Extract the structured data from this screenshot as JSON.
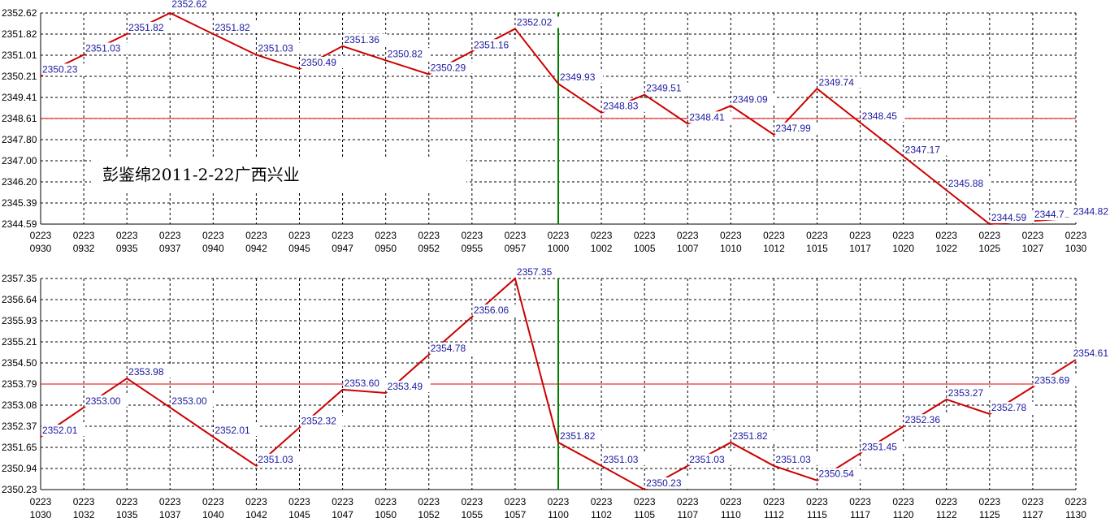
{
  "annotation": "彭鉴绵2011-2-22广西兴业",
  "colors": {
    "line": "#cc0000",
    "reference_line": "#e00000",
    "marker_line": "#008000",
    "grid": "#000000",
    "label": "#1a1aa0"
  },
  "chart_data": [
    {
      "type": "line",
      "ylim": [
        2344.59,
        2352.62
      ],
      "y_ticks": [
        "2352.62",
        "2351.82",
        "2351.01",
        "2350.21",
        "2349.41",
        "2348.61",
        "2347.80",
        "2347.00",
        "2346.20",
        "2345.39",
        "2344.59"
      ],
      "x_ticks": [
        {
          "top": "0223",
          "bottom": "0930"
        },
        {
          "top": "0223",
          "bottom": "0932"
        },
        {
          "top": "0223",
          "bottom": "0935"
        },
        {
          "top": "0223",
          "bottom": "0937"
        },
        {
          "top": "0223",
          "bottom": "0940"
        },
        {
          "top": "0223",
          "bottom": "0942"
        },
        {
          "top": "0223",
          "bottom": "0945"
        },
        {
          "top": "0223",
          "bottom": "0947"
        },
        {
          "top": "0223",
          "bottom": "0950"
        },
        {
          "top": "0223",
          "bottom": "0952"
        },
        {
          "top": "0223",
          "bottom": "0955"
        },
        {
          "top": "0223",
          "bottom": "0957"
        },
        {
          "top": "0223",
          "bottom": "1000"
        },
        {
          "top": "0223",
          "bottom": "1002"
        },
        {
          "top": "0223",
          "bottom": "1005"
        },
        {
          "top": "0223",
          "bottom": "1007"
        },
        {
          "top": "0223",
          "bottom": "1010"
        },
        {
          "top": "0223",
          "bottom": "1012"
        },
        {
          "top": "0223",
          "bottom": "1015"
        },
        {
          "top": "0223",
          "bottom": "1017"
        },
        {
          "top": "0223",
          "bottom": "1020"
        },
        {
          "top": "0223",
          "bottom": "1022"
        },
        {
          "top": "0223",
          "bottom": "1025"
        },
        {
          "top": "0223",
          "bottom": "1027"
        },
        {
          "top": "0223",
          "bottom": "1030"
        }
      ],
      "points": [
        {
          "x": "0930",
          "y": 2350.23,
          "label": "2350.23"
        },
        {
          "x": "0932",
          "y": 2351.03,
          "label": "2351.03"
        },
        {
          "x": "0935",
          "y": 2351.82,
          "label": "2351.82"
        },
        {
          "x": "0937",
          "y": 2352.62,
          "label": "2352.62"
        },
        {
          "x": "0940",
          "y": 2351.82,
          "label": "2351.82"
        },
        {
          "x": "0942",
          "y": 2351.03,
          "label": "2351.03"
        },
        {
          "x": "0945",
          "y": 2350.49,
          "label": "2350.49"
        },
        {
          "x": "0947",
          "y": 2351.36,
          "label": "2351.36"
        },
        {
          "x": "0950",
          "y": 2350.82,
          "label": "2350.82"
        },
        {
          "x": "0952",
          "y": 2350.29,
          "label": "2350.29"
        },
        {
          "x": "0955",
          "y": 2351.16,
          "label": "2351.16"
        },
        {
          "x": "0957",
          "y": 2352.02,
          "label": "2352.02"
        },
        {
          "x": "1000",
          "y": 2349.93,
          "label": "2349.93"
        },
        {
          "x": "1002",
          "y": 2348.83,
          "label": "2348.83"
        },
        {
          "x": "1005",
          "y": 2349.51,
          "label": "2349.51"
        },
        {
          "x": "1007",
          "y": 2348.41,
          "label": "2348.41"
        },
        {
          "x": "1010",
          "y": 2349.09,
          "label": "2349.09"
        },
        {
          "x": "1012",
          "y": 2347.99,
          "label": "2347.99"
        },
        {
          "x": "1015",
          "y": 2349.74,
          "label": "2349.74"
        },
        {
          "x": "1017",
          "y": 2348.45,
          "label": "2348.45"
        },
        {
          "x": "1020",
          "y": 2347.17,
          "label": "2347.17"
        },
        {
          "x": "1022",
          "y": 2345.88,
          "label": "2345.88"
        },
        {
          "x": "1025",
          "y": 2344.59,
          "label": "2344.59"
        },
        {
          "x": "1027",
          "y": 2344.71,
          "label": "2344.71"
        },
        {
          "x": "1030",
          "y": 2344.82,
          "label": "2344.82"
        }
      ],
      "reference_y": 2348.61,
      "marker_x": "1000",
      "grid": true
    },
    {
      "type": "line",
      "ylim": [
        2350.23,
        2357.35
      ],
      "y_ticks": [
        "2357.35",
        "2356.64",
        "2355.93",
        "2355.21",
        "2354.50",
        "2353.79",
        "2353.08",
        "2352.37",
        "2351.65",
        "2350.94",
        "2350.23"
      ],
      "x_ticks": [
        {
          "top": "0223",
          "bottom": "1030"
        },
        {
          "top": "0223",
          "bottom": "1032"
        },
        {
          "top": "0223",
          "bottom": "1035"
        },
        {
          "top": "0223",
          "bottom": "1037"
        },
        {
          "top": "0223",
          "bottom": "1040"
        },
        {
          "top": "0223",
          "bottom": "1042"
        },
        {
          "top": "0223",
          "bottom": "1045"
        },
        {
          "top": "0223",
          "bottom": "1047"
        },
        {
          "top": "0223",
          "bottom": "1050"
        },
        {
          "top": "0223",
          "bottom": "1052"
        },
        {
          "top": "0223",
          "bottom": "1055"
        },
        {
          "top": "0223",
          "bottom": "1057"
        },
        {
          "top": "0223",
          "bottom": "1100"
        },
        {
          "top": "0223",
          "bottom": "1102"
        },
        {
          "top": "0223",
          "bottom": "1105"
        },
        {
          "top": "0223",
          "bottom": "1107"
        },
        {
          "top": "0223",
          "bottom": "1110"
        },
        {
          "top": "0223",
          "bottom": "1112"
        },
        {
          "top": "0223",
          "bottom": "1115"
        },
        {
          "top": "0223",
          "bottom": "1117"
        },
        {
          "top": "0223",
          "bottom": "1120"
        },
        {
          "top": "0223",
          "bottom": "1122"
        },
        {
          "top": "0223",
          "bottom": "1125"
        },
        {
          "top": "0223",
          "bottom": "1127"
        },
        {
          "top": "0223",
          "bottom": "1130"
        }
      ],
      "points": [
        {
          "x": "1030",
          "y": 2352.01,
          "label": "2352.01"
        },
        {
          "x": "1032",
          "y": 2353.0,
          "label": "2353.00"
        },
        {
          "x": "1035",
          "y": 2353.98,
          "label": "2353.98"
        },
        {
          "x": "1037",
          "y": 2353.0,
          "label": "2353.00"
        },
        {
          "x": "1040",
          "y": 2352.01,
          "label": "2352.01"
        },
        {
          "x": "1042",
          "y": 2351.03,
          "label": "2351.03"
        },
        {
          "x": "1045",
          "y": 2352.32,
          "label": "2352.32"
        },
        {
          "x": "1047",
          "y": 2353.6,
          "label": "2353.60"
        },
        {
          "x": "1050",
          "y": 2353.49,
          "label": "2353.49"
        },
        {
          "x": "1052",
          "y": 2354.78,
          "label": "2354.78"
        },
        {
          "x": "1055",
          "y": 2356.06,
          "label": "2356.06"
        },
        {
          "x": "1057",
          "y": 2357.35,
          "label": "2357.35"
        },
        {
          "x": "1100",
          "y": 2351.82,
          "label": "2351.82"
        },
        {
          "x": "1102",
          "y": 2351.03,
          "label": "2351.03"
        },
        {
          "x": "1105",
          "y": 2350.23,
          "label": "2350.23"
        },
        {
          "x": "1107",
          "y": 2351.03,
          "label": "2351.03"
        },
        {
          "x": "1110",
          "y": 2351.82,
          "label": "2351.82"
        },
        {
          "x": "1112",
          "y": 2351.03,
          "label": "2351.03"
        },
        {
          "x": "1115",
          "y": 2350.54,
          "label": "2350.54"
        },
        {
          "x": "1117",
          "y": 2351.45,
          "label": "2351.45"
        },
        {
          "x": "1120",
          "y": 2352.36,
          "label": "2352.36"
        },
        {
          "x": "1122",
          "y": 2353.27,
          "label": "2353.27"
        },
        {
          "x": "1125",
          "y": 2352.78,
          "label": "2352.78"
        },
        {
          "x": "1127",
          "y": 2353.69,
          "label": "2353.69"
        },
        {
          "x": "1130",
          "y": 2354.61,
          "label": "2354.61"
        }
      ],
      "reference_y": 2353.79,
      "marker_x": "1100",
      "grid": true
    }
  ]
}
